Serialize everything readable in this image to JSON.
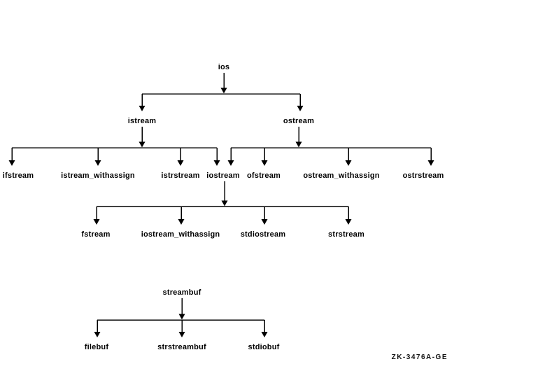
{
  "figure_label": "ZK-3476A-GE",
  "colors": {
    "background": "#ffffff",
    "line": "#000000",
    "text": "#000000"
  },
  "diagram": {
    "type": "class-inheritance-tree",
    "nodes": {
      "ios": "ios",
      "istream": "istream",
      "ostream": "ostream",
      "ifstream": "ifstream",
      "istream_withassign": "istream_withassign",
      "istrstream": "istrstream",
      "iostream": "iostream",
      "ofstream": "ofstream",
      "ostream_withassign": "ostream_withassign",
      "ostrstream": "ostrstream",
      "fstream": "fstream",
      "iostream_withassign": "iostream_withassign",
      "stdiostream": "stdiostream",
      "strstream": "strstream",
      "streambuf": "streambuf",
      "filebuf": "filebuf",
      "strstreambuf": "strstreambuf",
      "stdiobuf": "stdiobuf"
    },
    "edges": [
      [
        "ios",
        "istream"
      ],
      [
        "ios",
        "ostream"
      ],
      [
        "istream",
        "ifstream"
      ],
      [
        "istream",
        "istream_withassign"
      ],
      [
        "istream",
        "istrstream"
      ],
      [
        "istream",
        "iostream"
      ],
      [
        "ostream",
        "iostream"
      ],
      [
        "ostream",
        "ofstream"
      ],
      [
        "ostream",
        "ostream_withassign"
      ],
      [
        "ostream",
        "ostrstream"
      ],
      [
        "iostream",
        "fstream"
      ],
      [
        "iostream",
        "iostream_withassign"
      ],
      [
        "iostream",
        "stdiostream"
      ],
      [
        "iostream",
        "strstream"
      ],
      [
        "streambuf",
        "filebuf"
      ],
      [
        "streambuf",
        "strstreambuf"
      ],
      [
        "streambuf",
        "stdiobuf"
      ]
    ]
  }
}
